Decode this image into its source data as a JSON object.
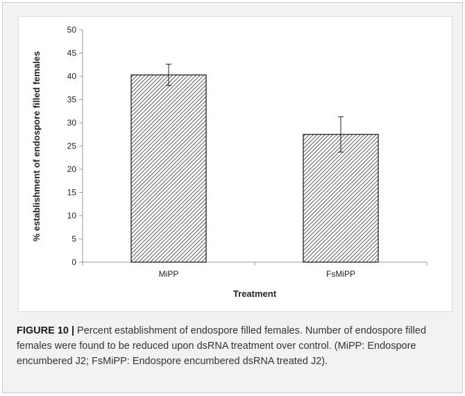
{
  "chart_data": {
    "type": "bar",
    "categories": [
      "MiPP",
      "FsMiPP"
    ],
    "values": [
      40.3,
      27.5
    ],
    "errors": [
      2.3,
      3.8
    ],
    "xlabel": "Treatment",
    "ylabel": "% establishment of endospore filled females",
    "ylim": [
      0,
      50
    ],
    "yticks": [
      0,
      5,
      10,
      15,
      20,
      25,
      30,
      35,
      40,
      45,
      50
    ],
    "grid": false,
    "bar_pattern": "diagonal-hatch",
    "colors": {
      "hatch": "#333333",
      "bar_border": "#222222",
      "axis": "#999999"
    }
  },
  "caption": {
    "figure_label": "FIGURE 10 |",
    "text": " Percent establishment of endospore filled females. Number of endospore filled females were found to be reduced upon dsRNA treatment over control. (MiPP: Endospore encumbered J2; FsMiPP: Endospore encumbered dsRNA treated J2)."
  }
}
